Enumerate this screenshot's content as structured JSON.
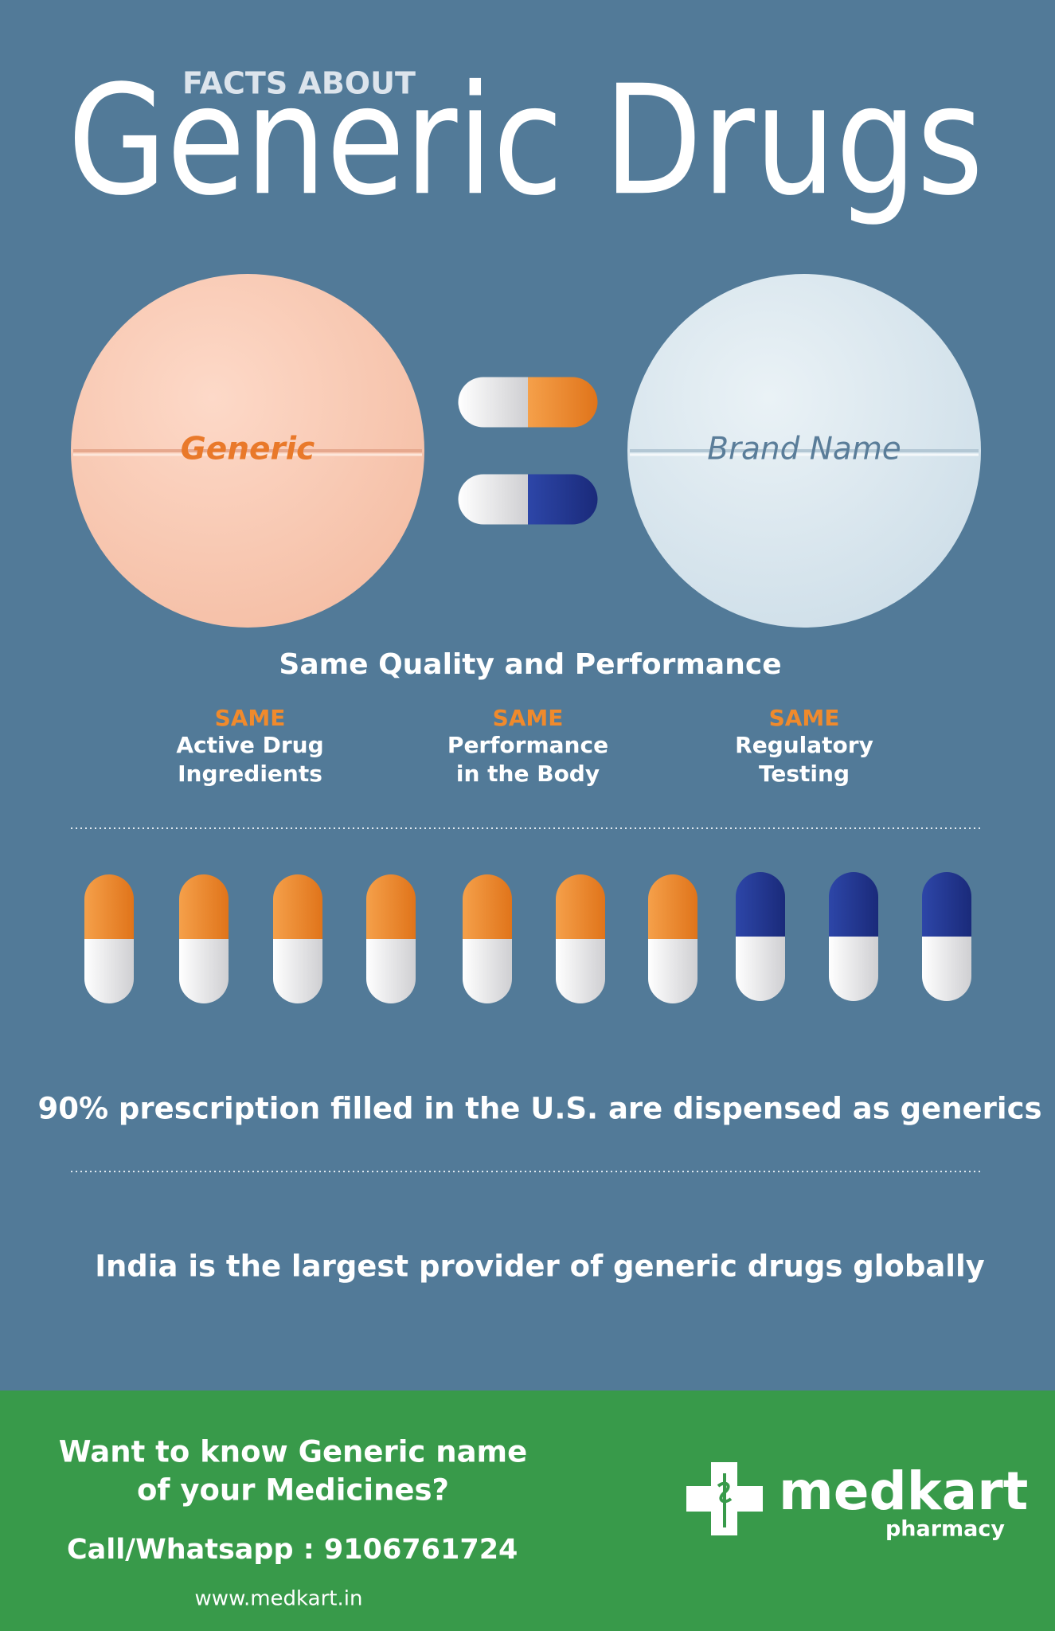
{
  "header": {
    "kicker": "FACTS ABOUT",
    "title": "Generic Drugs"
  },
  "comparison": {
    "left": "Generic",
    "right": "Brand Name",
    "caption": "Same Quality and Performance"
  },
  "features": [
    {
      "label": "SAME",
      "lines": [
        "Active Drug",
        "Ingredients"
      ]
    },
    {
      "label": "SAME",
      "lines": [
        "Performance",
        "in the Body"
      ]
    },
    {
      "label": "SAME",
      "lines": [
        "Regulatory",
        "Testing"
      ]
    }
  ],
  "facts": [
    "90% prescription filled in the U.S. are dispensed as generics",
    "India is the largest provider of generic drugs globally"
  ],
  "footer": {
    "question": [
      "Want to know Generic name",
      "of your Medicines?"
    ],
    "contact": "Call/Whatsapp : 9106761724",
    "website": "www.medkart.in",
    "brand": "medkart",
    "brand_sub": "pharmacy"
  }
}
